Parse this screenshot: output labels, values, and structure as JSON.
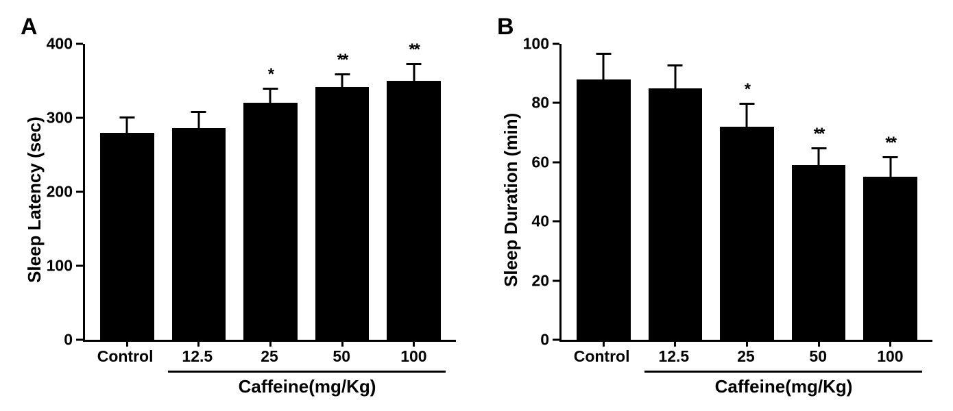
{
  "panels": {
    "A": {
      "label": "A",
      "type": "bar",
      "ylabel": "Sleep Latency (sec)",
      "ylim": [
        0,
        400
      ],
      "ytick_step": 100,
      "yticks": [
        0,
        100,
        200,
        300,
        400
      ],
      "categories": [
        "Control",
        "12.5",
        "25",
        "50",
        "100"
      ],
      "values": [
        280,
        286,
        320,
        342,
        350
      ],
      "errors": [
        22,
        23,
        21,
        18,
        24
      ],
      "significance": [
        "",
        "",
        "*",
        "**",
        "**"
      ],
      "bar_color": "#000000",
      "background_color": "#ffffff",
      "axis_color": "#000000",
      "axis_width": 3,
      "bar_width": 0.85,
      "x_group_label": "Caffeine(mg/Kg)",
      "x_group_start": 1,
      "label_fontsize": 26,
      "tick_fontsize": 23,
      "panel_label_fontsize": 34
    },
    "B": {
      "label": "B",
      "type": "bar",
      "ylabel": "Sleep Duration (min)",
      "ylim": [
        0,
        100
      ],
      "ytick_step": 20,
      "yticks": [
        0,
        20,
        40,
        60,
        80,
        100
      ],
      "categories": [
        "Control",
        "12.5",
        "25",
        "50",
        "100"
      ],
      "values": [
        88,
        85,
        72,
        59,
        55
      ],
      "errors": [
        9,
        8,
        8,
        6,
        7
      ],
      "significance": [
        "",
        "",
        "*",
        "**",
        "**"
      ],
      "bar_color": "#000000",
      "background_color": "#ffffff",
      "axis_color": "#000000",
      "axis_width": 3,
      "bar_width": 0.85,
      "x_group_label": "Caffeine(mg/Kg)",
      "x_group_start": 1,
      "label_fontsize": 26,
      "tick_fontsize": 23,
      "panel_label_fontsize": 34
    }
  }
}
